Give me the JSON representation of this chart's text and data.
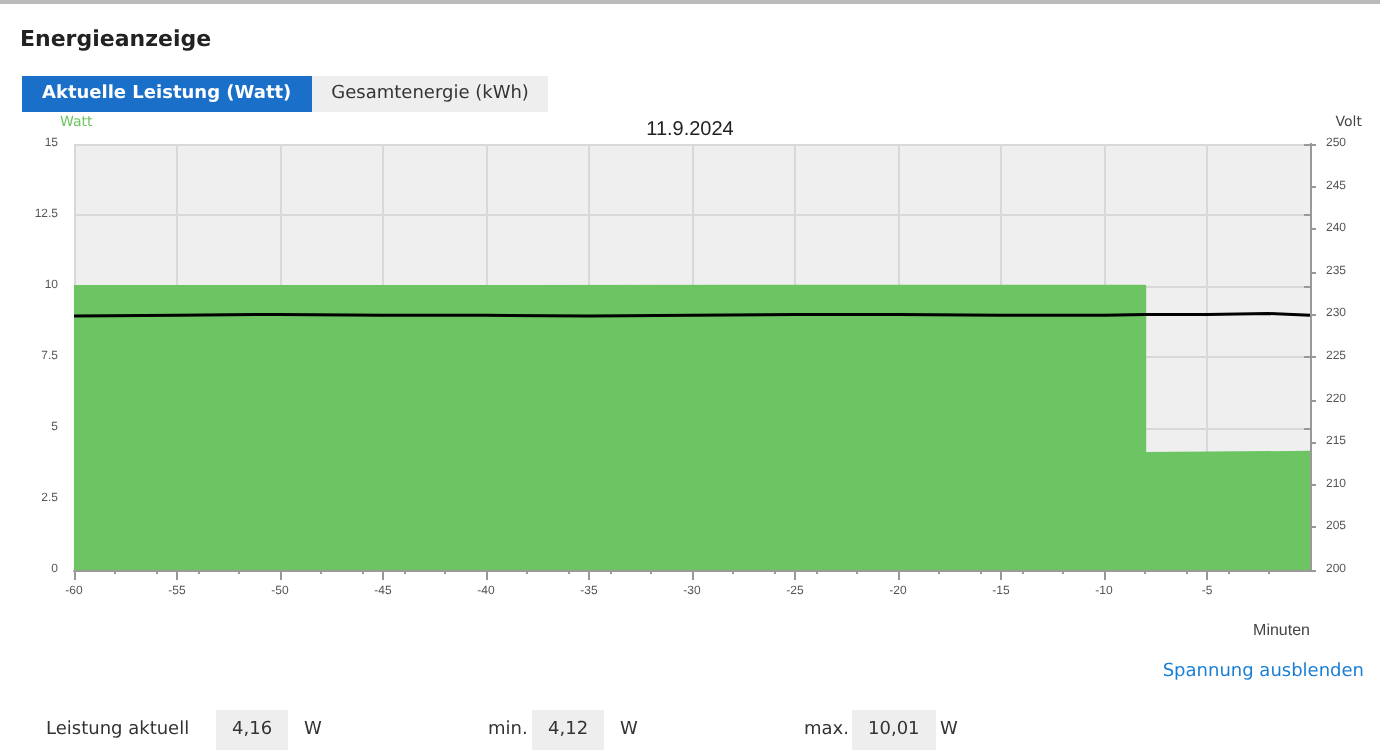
{
  "chart_data": {
    "type": "area",
    "title": "Energieanzeige",
    "subtitle": "11.9.2024",
    "xlabel": "Minuten",
    "ylabel": "Watt",
    "y2label": "Volt",
    "annotations": [
      "Aktuelle Leistung (Watt)",
      "Gesamtenergie (kWh)",
      "Spannung ausblenden",
      "Leistung aktuell",
      "4,16",
      "W",
      "min.",
      "4,12",
      "W",
      "max.",
      "10,01",
      "W"
    ],
    "series": [
      {
        "color": "#6cc462",
        "x": [
          -60,
          -8,
          -8,
          0
        ],
        "values": [
          10,
          10.01,
          4.12,
          4.16
        ]
      },
      {
        "type": "line",
        "axis": "y2",
        "color": "#000000",
        "x": [
          -60,
          -55,
          -50,
          -45,
          -40,
          -35,
          -30,
          -25,
          -20,
          -15,
          -10,
          -8,
          -5,
          -2,
          0
        ],
        "values": [
          229.8,
          229.9,
          230,
          229.9,
          229.9,
          229.8,
          229.9,
          230,
          230,
          229.9,
          229.9,
          230,
          230,
          230.1,
          229.9
        ]
      }
    ],
    "xlim": [
      -60,
      0
    ],
    "xticks": [
      -60,
      -55,
      -50,
      -45,
      -40,
      -35,
      -30,
      -25,
      -20,
      -15,
      -10,
      -5
    ],
    "ylim": [
      0,
      15
    ],
    "yticks": [
      0,
      2.5,
      5,
      7.5,
      10,
      12.5,
      15
    ],
    "y2lim": [
      200,
      250
    ],
    "y2ticks": [
      200,
      205,
      210,
      215,
      220,
      225,
      230,
      235,
      240,
      245,
      250
    ],
    "grid": true,
    "marker": "none",
    "line_style": "solid"
  }
}
